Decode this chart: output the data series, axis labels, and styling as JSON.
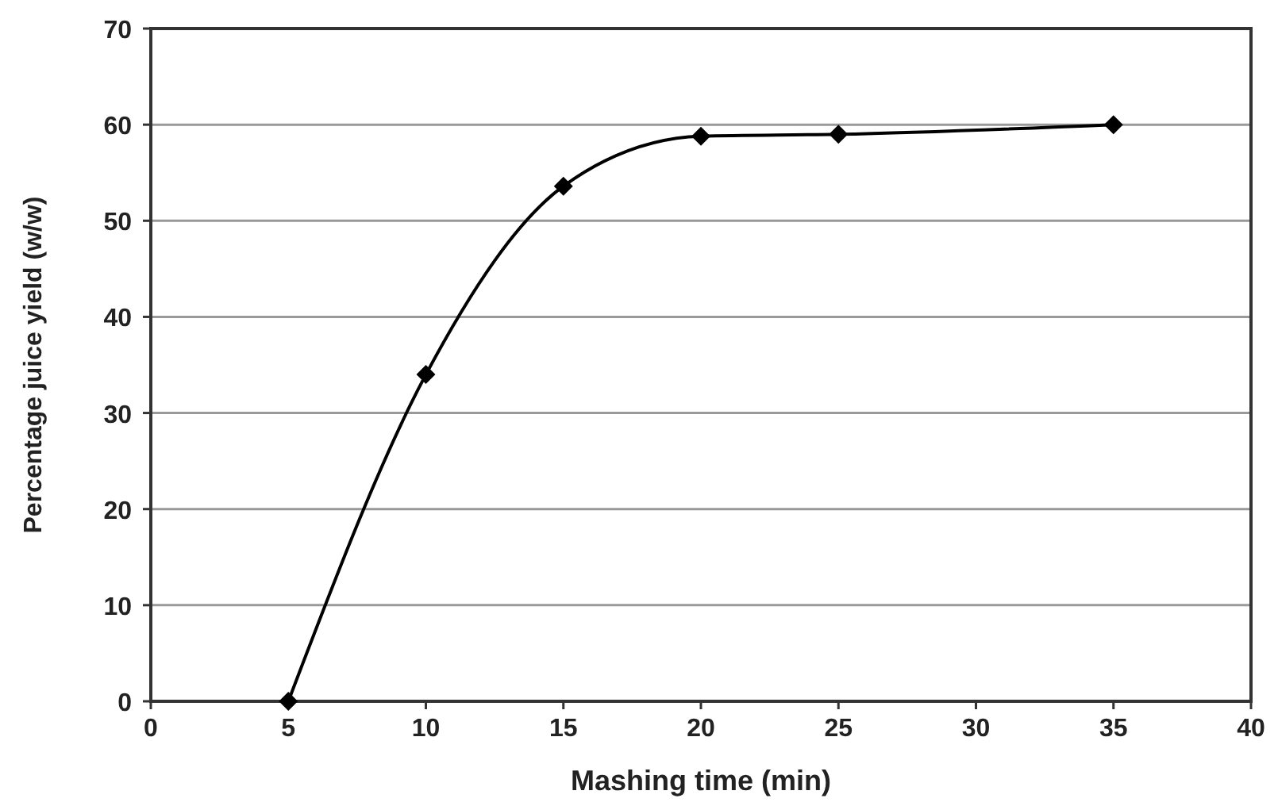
{
  "chart_data": {
    "type": "line",
    "xlabel": "Mashing time (min)",
    "ylabel": "Percentage juice yield (w/w)",
    "x": [
      5,
      10,
      15,
      20,
      25,
      35
    ],
    "series": [
      {
        "color": "#000000",
        "values": [
          0,
          34,
          53.6,
          58.8,
          59,
          60
        ]
      }
    ],
    "xlim": [
      0,
      40
    ],
    "xticks": [
      0,
      5,
      10,
      15,
      20,
      25,
      30,
      35,
      40
    ],
    "ylim": [
      0,
      70
    ],
    "yticks": [
      0,
      10,
      20,
      30,
      40,
      50,
      60,
      70
    ],
    "grid": "y",
    "marker": "diamond",
    "line_style": "solid"
  }
}
